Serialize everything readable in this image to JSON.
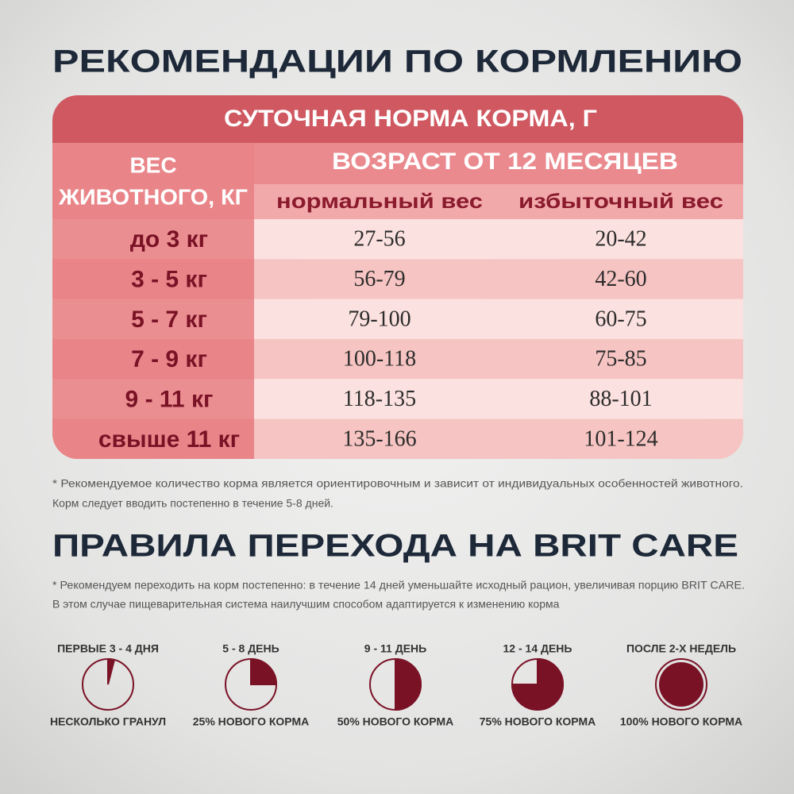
{
  "feeding": {
    "title": "РЕКОМЕНДАЦИИ ПО КОРМЛЕНИЮ",
    "table": {
      "caption": "СУТОЧНАЯ НОРМА КОРМА, Г",
      "weight_header": [
        "ВЕС",
        "ЖИВОТНОГО, КГ"
      ],
      "age_header": "ВОЗРАСТ ОТ 12 МЕСЯЦЕВ",
      "columns": [
        "нормальный вес",
        "избыточный вес"
      ],
      "rows": [
        [
          "до 3 кг",
          "27-56",
          "20-42"
        ],
        [
          "3 - 5 кг",
          "56-79",
          "42-60"
        ],
        [
          "5 - 7 кг",
          "79-100",
          "60-75"
        ],
        [
          "7 - 9 кг",
          "100-118",
          "75-85"
        ],
        [
          "9 - 11 кг",
          "118-135",
          "88-101"
        ],
        [
          "свыше 11 кг",
          "135-166",
          "101-124"
        ]
      ]
    },
    "note": [
      "* Рекомендуемое количество корма является ориентировочным и зависит от индивидуальных особенностей животного.",
      "Корм следует вводить постепенно в течение 5-8 дней."
    ]
  },
  "transition": {
    "title": "ПРАВИЛА ПЕРЕХОДА НА BRIT CARE",
    "note": [
      "* Рекомендуем переходить на корм постепенно: в течение 14 дней уменьшайте исходный рацион, увеличивая порцию BRIT CARE.",
      "В этом случае пищеварительная система наилучшим способом адаптируется к изменению корма"
    ],
    "steps": [
      {
        "period": "ПЕРВЫЕ 3 - 4 ДНЯ",
        "result": "НЕСКОЛЬКО ГРАНУЛ"
      },
      {
        "period": "5 - 8 ДЕНЬ",
        "result": "25% НОВОГО КОРМА"
      },
      {
        "period": "9 - 11 ДЕНЬ",
        "result": "50% НОВОГО КОРМА"
      },
      {
        "period": "12 - 14 ДЕНЬ",
        "result": "75% НОВОГО КОРМА"
      },
      {
        "period": "ПОСЛЕ 2-Х НЕДЕЛЬ",
        "result": "100% НОВОГО КОРМА"
      }
    ]
  }
}
